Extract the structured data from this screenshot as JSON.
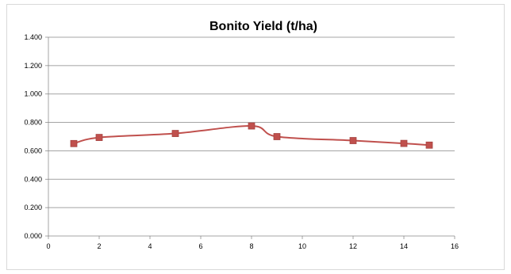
{
  "chart_data": {
    "type": "line",
    "title": "Bonito Yield (t/ha)",
    "xlabel": "",
    "ylabel": "",
    "xlim": [
      0,
      16
    ],
    "ylim": [
      0,
      1.4
    ],
    "x_ticks": [
      0,
      2,
      4,
      6,
      8,
      10,
      12,
      14,
      16
    ],
    "y_ticks": [
      "0.000",
      "0.200",
      "0.400",
      "0.600",
      "0.800",
      "1.000",
      "1.200",
      "1.400"
    ],
    "grid": "horizontal",
    "legend": "none",
    "smooth": true,
    "marker": "square",
    "series": [
      {
        "color": "#c0504d",
        "x": [
          1,
          2,
          5,
          8,
          9,
          12,
          14,
          15
        ],
        "y": [
          0.651,
          0.694,
          0.722,
          0.775,
          0.7,
          0.672,
          0.652,
          0.64
        ]
      }
    ]
  }
}
